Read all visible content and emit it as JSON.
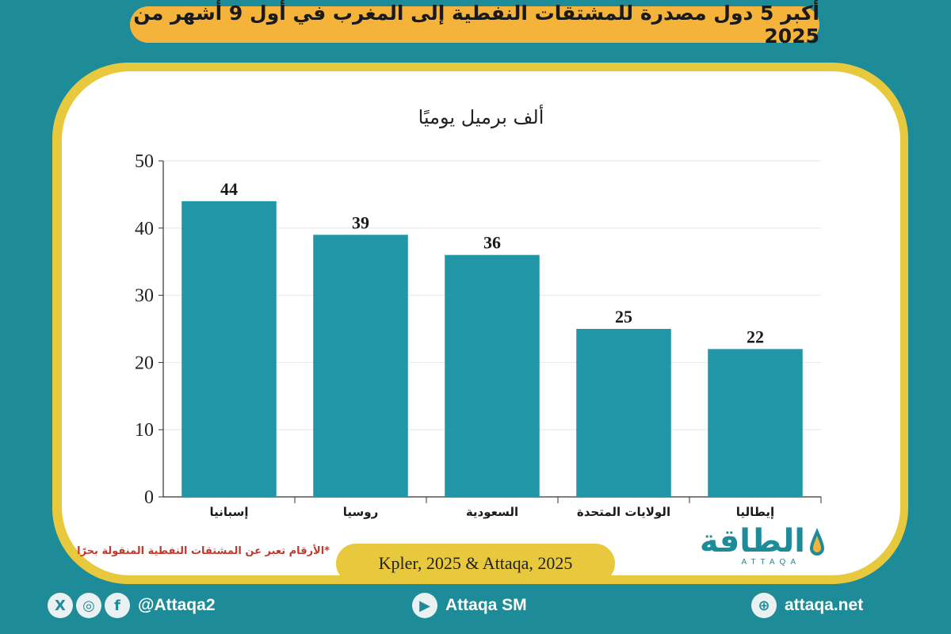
{
  "title": "أكبر 5 دول مصدرة للمشتقات النفطية إلى المغرب في أول 9 أشهر من 2025",
  "chart_data": {
    "type": "bar",
    "title": "أكبر 5 دول مصدرة للمشتقات النفطية إلى المغرب في أول 9 أشهر من 2025",
    "ylabel": "ألف برميل يوميًا",
    "xlabel": "",
    "categories": [
      "إسبانيا",
      "روسيا",
      "السعودية",
      "الولايات المتحدة",
      "إيطاليا"
    ],
    "values": [
      44,
      39,
      36,
      25,
      22
    ],
    "ylim": [
      0,
      50
    ],
    "yticks": [
      0,
      10,
      20,
      30,
      40,
      50
    ],
    "grid": true,
    "bar_color": "#2196a6",
    "data_labels": true
  },
  "unit_label": "ألف برميل يوميًا",
  "note": "*الأرقام تعبر عن المشتقات النفطية المنقولة بحرًا",
  "source": "Kpler, 2025 & Attaqa, 2025",
  "logo": {
    "arabic": "الطاقة",
    "english": "ATTAQA"
  },
  "footer": {
    "social_handle": "@Attaqa2",
    "youtube": "Attaqa SM",
    "website": "attaqa.net"
  },
  "colors": {
    "background": "#1e8c98",
    "title_pill": "#f6b33a",
    "card_border": "#e8c93e",
    "bar": "#2196a6",
    "note": "#c0392b"
  }
}
